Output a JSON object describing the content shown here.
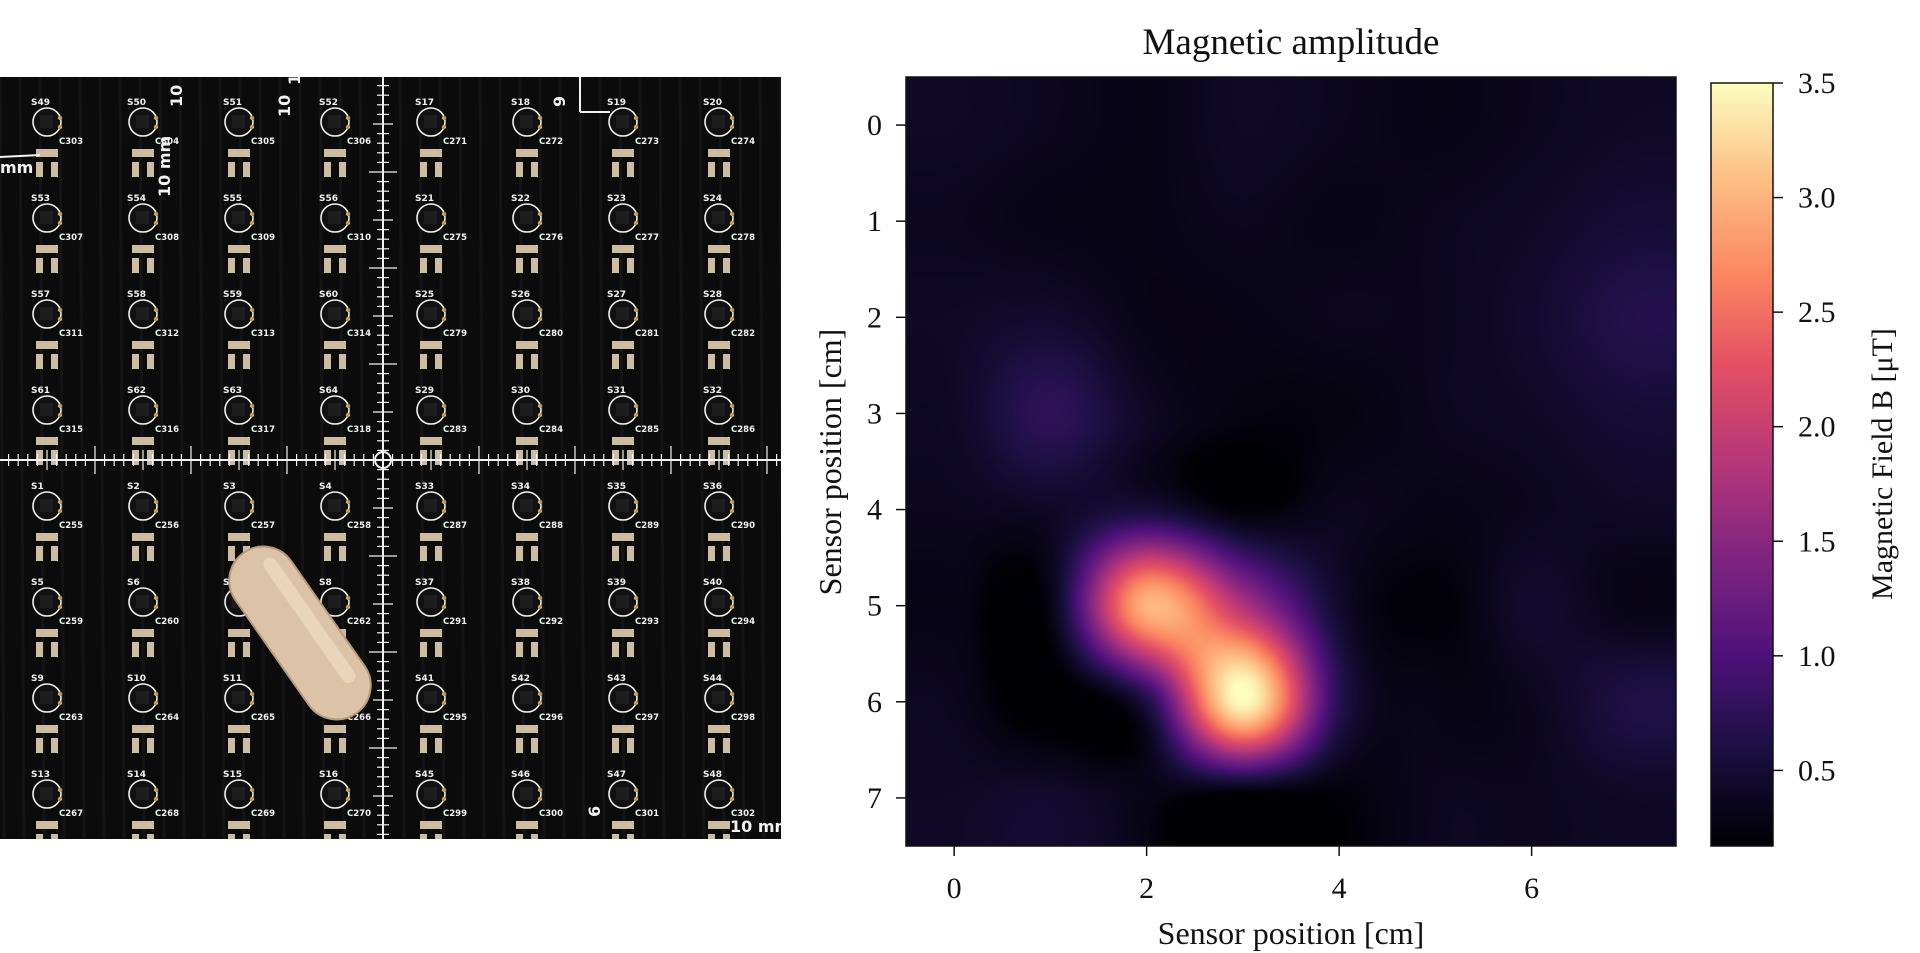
{
  "photo": {
    "sensor_rows": [
      [
        "S49",
        "S50",
        "S51",
        "S52",
        "S17",
        "S18",
        "S19",
        "S20"
      ],
      [
        "S53",
        "S54",
        "S55",
        "S56",
        "S21",
        "S22",
        "S23",
        "S24"
      ],
      [
        "S57",
        "S58",
        "S59",
        "S60",
        "S25",
        "S26",
        "S27",
        "S28"
      ],
      [
        "S61",
        "S62",
        "S63",
        "S64",
        "S29",
        "S30",
        "S31",
        "S32"
      ],
      [
        "S1",
        "S2",
        "S3",
        "S4",
        "S33",
        "S34",
        "S35",
        "S36"
      ],
      [
        "S5",
        "S6",
        "S7",
        "S8",
        "S37",
        "S38",
        "S39",
        "S40"
      ],
      [
        "S9",
        "S10",
        "S11",
        "S12",
        "S41",
        "S42",
        "S43",
        "S44"
      ],
      [
        "S13",
        "S14",
        "S15",
        "S16",
        "S45",
        "S46",
        "S47",
        "S48"
      ]
    ],
    "capacitor_rows": [
      [
        "C303",
        "C304",
        "C305",
        "C306",
        "C271",
        "C272",
        "C273",
        "C274"
      ],
      [
        "C307",
        "C308",
        "C309",
        "C310",
        "C275",
        "C276",
        "C277",
        "C278"
      ],
      [
        "C311",
        "C312",
        "C313",
        "C314",
        "C279",
        "C280",
        "C281",
        "C282"
      ],
      [
        "C315",
        "C316",
        "C317",
        "C318",
        "C283",
        "C284",
        "C285",
        "C286"
      ],
      [
        "C255",
        "C256",
        "C257",
        "C258",
        "C287",
        "C288",
        "C289",
        "C290"
      ],
      [
        "C259",
        "C260",
        "C261",
        "C262",
        "C291",
        "C292",
        "C293",
        "C294"
      ],
      [
        "C263",
        "C264",
        "C265",
        "C266",
        "C295",
        "C296",
        "C297",
        "C298"
      ],
      [
        "C267",
        "C268",
        "C269",
        "C270",
        "C299",
        "C300",
        "C301",
        "C302"
      ]
    ],
    "ruler_labels": [
      "10",
      "10 mm",
      "10",
      "10 mm",
      "9",
      "mm",
      "6",
      "10 mm"
    ],
    "board_color": "#0c0b0b",
    "silkscreen_color": "#f2f2f2",
    "pad_color": "#cdbba2",
    "capsule_color": "#dcc2a6"
  },
  "chart_data": {
    "type": "heatmap",
    "title": "Magnetic amplitude",
    "xlabel": "Sensor position [cm]",
    "ylabel": "Sensor position [cm]",
    "xlim": [
      -0.5,
      7.5
    ],
    "ylim": [
      7.5,
      -0.5
    ],
    "x_ticks": [
      "0",
      "2",
      "4",
      "6"
    ],
    "y_ticks": [
      "0",
      "1",
      "2",
      "3",
      "4",
      "5",
      "6",
      "7"
    ],
    "grid": false,
    "interpolation": "bicubic",
    "colormap": "magma",
    "x": [
      0,
      1,
      2,
      3,
      4,
      5,
      6,
      7
    ],
    "y": [
      0,
      1,
      2,
      3,
      4,
      5,
      6,
      7
    ],
    "values": [
      [
        0.4,
        0.35,
        0.3,
        0.4,
        0.35,
        0.3,
        0.35,
        0.4
      ],
      [
        0.35,
        0.3,
        0.3,
        0.35,
        0.3,
        0.35,
        0.4,
        0.5
      ],
      [
        0.4,
        0.45,
        0.3,
        0.3,
        0.35,
        0.35,
        0.45,
        0.65
      ],
      [
        0.4,
        0.75,
        0.4,
        0.25,
        0.25,
        0.35,
        0.4,
        0.5
      ],
      [
        0.35,
        0.4,
        0.55,
        0.2,
        0.35,
        0.3,
        0.35,
        0.4
      ],
      [
        0.3,
        0.3,
        3.0,
        1.8,
        0.45,
        0.2,
        0.45,
        0.3
      ],
      [
        0.35,
        0.1,
        0.6,
        3.5,
        0.7,
        0.3,
        0.35,
        0.6
      ],
      [
        0.4,
        0.45,
        0.3,
        0.1,
        0.2,
        0.35,
        0.35,
        0.4
      ]
    ],
    "colorbar": {
      "label": "Magnetic Field B [μT]",
      "range": [
        0.17,
        3.5
      ],
      "ticks": [
        "0.5",
        "1.0",
        "1.5",
        "2.0",
        "2.5",
        "3.0",
        "3.5"
      ]
    }
  }
}
